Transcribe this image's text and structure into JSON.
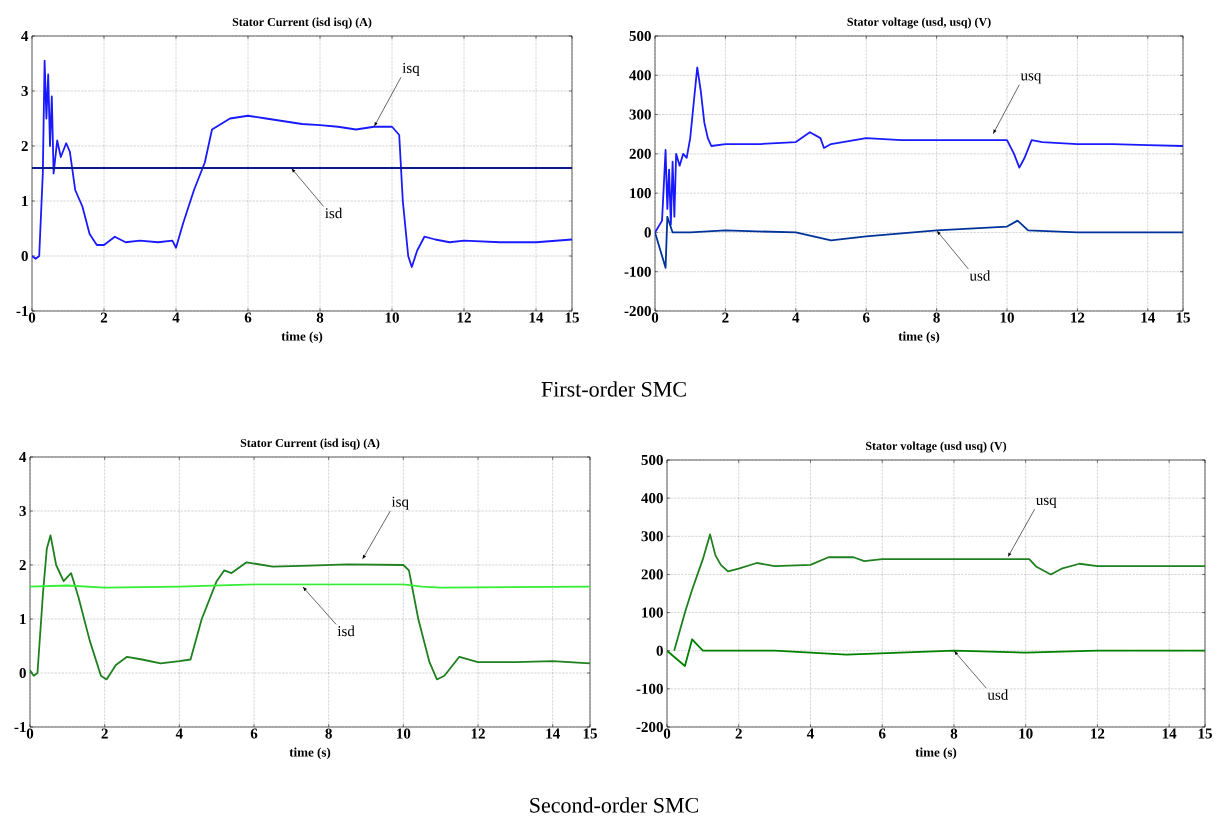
{
  "chart_data": [
    {
      "type": "line",
      "title": "Stator Current (isd isq) (A)",
      "xlabel": "time (s)",
      "xlim": [
        0,
        15
      ],
      "ylim": [
        -1,
        4
      ],
      "xticks": [
        0,
        2,
        4,
        6,
        8,
        10,
        12,
        14,
        15
      ],
      "yticks": [
        -1,
        0,
        1,
        2,
        3,
        4
      ],
      "grid": true,
      "series": [
        {
          "color": "#1a1aff",
          "x": [
            0,
            0.1,
            0.2,
            0.3,
            0.35,
            0.4,
            0.45,
            0.5,
            0.55,
            0.6,
            0.7,
            0.8,
            0.95,
            1.05,
            1.2,
            1.4,
            1.6,
            1.8,
            2.0,
            2.3,
            2.6,
            3.0,
            3.5,
            3.9,
            4.0,
            4.2,
            4.5,
            4.8,
            5.0,
            5.5,
            6.0,
            6.5,
            7,
            7.5,
            8,
            8.5,
            9,
            9.5,
            10,
            10.2,
            10.3,
            10.45,
            10.55,
            10.7,
            10.9,
            11.2,
            11.6,
            12,
            13,
            14,
            15
          ],
          "values": [
            0,
            -0.05,
            0,
            1.5,
            3.55,
            2.5,
            3.3,
            2.0,
            2.9,
            1.5,
            2.1,
            1.8,
            2.05,
            1.9,
            1.2,
            0.9,
            0.4,
            0.2,
            0.2,
            0.35,
            0.25,
            0.28,
            0.25,
            0.28,
            0.15,
            0.6,
            1.2,
            1.7,
            2.3,
            2.5,
            2.55,
            2.5,
            2.45,
            2.4,
            2.38,
            2.35,
            2.3,
            2.35,
            2.35,
            2.2,
            1.0,
            0,
            -0.2,
            0.1,
            0.35,
            0.3,
            0.25,
            0.28,
            0.25,
            0.25,
            0.3
          ]
        },
        {
          "color": "#0d1a8c",
          "x": [
            0,
            15
          ],
          "values": [
            1.6,
            1.6
          ]
        }
      ],
      "annotations": [
        {
          "text": "isq",
          "x": 9.5,
          "y": 2.35
        },
        {
          "text": "isd",
          "x": 7.2,
          "y": 1.6
        },
        "First-order SMC"
      ]
    },
    {
      "type": "line",
      "title": "Stator voltage (usd, usq) (V)",
      "xlabel": "time (s)",
      "xlim": [
        0,
        15
      ],
      "ylim": [
        -200,
        500
      ],
      "xticks": [
        0,
        2,
        4,
        6,
        8,
        10,
        12,
        14,
        15
      ],
      "yticks": [
        -200,
        -100,
        0,
        100,
        200,
        300,
        400,
        500
      ],
      "grid": true,
      "series": [
        {
          "color": "#1a1aff",
          "x": [
            0,
            0.2,
            0.3,
            0.35,
            0.4,
            0.45,
            0.5,
            0.55,
            0.6,
            0.7,
            0.8,
            0.9,
            1.0,
            1.1,
            1.2,
            1.3,
            1.4,
            1.5,
            1.6,
            2,
            3,
            4,
            4.4,
            4.7,
            4.8,
            5,
            6,
            7,
            8,
            9,
            10,
            10.2,
            10.35,
            10.5,
            10.7,
            11,
            12,
            13,
            14,
            15
          ],
          "values": [
            0,
            30,
            210,
            60,
            160,
            20,
            180,
            40,
            200,
            170,
            200,
            190,
            240,
            330,
            420,
            360,
            280,
            240,
            220,
            225,
            225,
            230,
            255,
            240,
            215,
            225,
            240,
            235,
            235,
            235,
            235,
            200,
            165,
            190,
            235,
            230,
            225,
            225,
            222,
            220
          ]
        },
        {
          "color": "#003399",
          "x": [
            0,
            0.3,
            0.35,
            0.5,
            1,
            2,
            4,
            5,
            6,
            8,
            10,
            10.3,
            10.6,
            12,
            15
          ],
          "values": [
            0,
            -90,
            40,
            0,
            0,
            5,
            0,
            -20,
            -10,
            5,
            15,
            30,
            5,
            0,
            0
          ]
        }
      ],
      "annotations": [
        {
          "text": "usq",
          "x": 9.6,
          "y": 250
        },
        {
          "text": "usd",
          "x": 8,
          "y": 5
        }
      ]
    },
    {
      "type": "line",
      "title": "Stator Current (isd isq) (A)",
      "xlabel": "time (s)",
      "xlim": [
        0,
        15
      ],
      "ylim": [
        -1,
        4
      ],
      "xticks": [
        0,
        2,
        4,
        6,
        8,
        10,
        12,
        14,
        15
      ],
      "yticks": [
        -1,
        0,
        1,
        2,
        3,
        4
      ],
      "grid": true,
      "series": [
        {
          "color": "#1f801f",
          "x": [
            0,
            0.1,
            0.2,
            0.35,
            0.45,
            0.55,
            0.7,
            0.9,
            1.1,
            1.3,
            1.6,
            1.9,
            2.05,
            2.3,
            2.6,
            3,
            3.5,
            4,
            4.3,
            4.6,
            5.0,
            5.2,
            5.4,
            5.8,
            6.5,
            7.5,
            8.5,
            10,
            10.15,
            10.4,
            10.7,
            10.9,
            11.1,
            11.5,
            12,
            13,
            14,
            15
          ],
          "values": [
            0.05,
            -0.05,
            0,
            1.5,
            2.3,
            2.55,
            2.0,
            1.7,
            1.85,
            1.4,
            0.6,
            -0.05,
            -0.12,
            0.15,
            0.3,
            0.25,
            0.18,
            0.22,
            0.25,
            1.0,
            1.7,
            1.9,
            1.85,
            2.05,
            1.97,
            1.99,
            2.01,
            2.0,
            1.9,
            1.0,
            0.2,
            -0.12,
            -0.05,
            0.3,
            0.2,
            0.2,
            0.22,
            0.18
          ]
        },
        {
          "color": "#33ee33",
          "x": [
            0,
            1,
            2,
            4,
            6,
            10,
            10.5,
            11,
            15
          ],
          "values": [
            1.6,
            1.62,
            1.58,
            1.6,
            1.64,
            1.64,
            1.6,
            1.58,
            1.6
          ]
        }
      ],
      "annotations": [
        {
          "text": "isq",
          "x": 8.9,
          "y": 2.1
        },
        {
          "text": "isd",
          "x": 7.3,
          "y": 1.6
        },
        "Second-order SMC"
      ]
    },
    {
      "type": "line",
      "title": "Stator voltage (usd usq) (V)",
      "xlabel": "time (s)",
      "xlim": [
        0,
        15
      ],
      "ylim": [
        -200,
        500
      ],
      "xticks": [
        0,
        2,
        4,
        6,
        8,
        10,
        12,
        14,
        15
      ],
      "yticks": [
        -200,
        -100,
        0,
        100,
        200,
        300,
        400,
        500
      ],
      "grid": true,
      "series": [
        {
          "color": "#1f801f",
          "x": [
            0.2,
            0.5,
            0.7,
            1.0,
            1.2,
            1.35,
            1.5,
            1.7,
            2,
            2.5,
            3,
            4,
            4.5,
            5.2,
            5.5,
            6,
            10,
            10.1,
            10.3,
            10.7,
            11,
            11.5,
            12,
            15
          ],
          "values": [
            0,
            100,
            160,
            240,
            305,
            250,
            225,
            208,
            215,
            230,
            222,
            225,
            245,
            245,
            235,
            240,
            240,
            240,
            220,
            200,
            215,
            228,
            222,
            222
          ]
        },
        {
          "color": "#008000",
          "x": [
            0,
            0.5,
            0.7,
            1,
            3,
            5,
            8,
            10,
            12,
            15
          ],
          "values": [
            0,
            -40,
            30,
            0,
            0,
            -10,
            0,
            -5,
            0,
            0
          ]
        }
      ],
      "annotations": [
        {
          "text": "usq",
          "x": 9.5,
          "y": 245
        },
        {
          "text": "usd",
          "x": 8,
          "y": 0
        }
      ]
    }
  ]
}
